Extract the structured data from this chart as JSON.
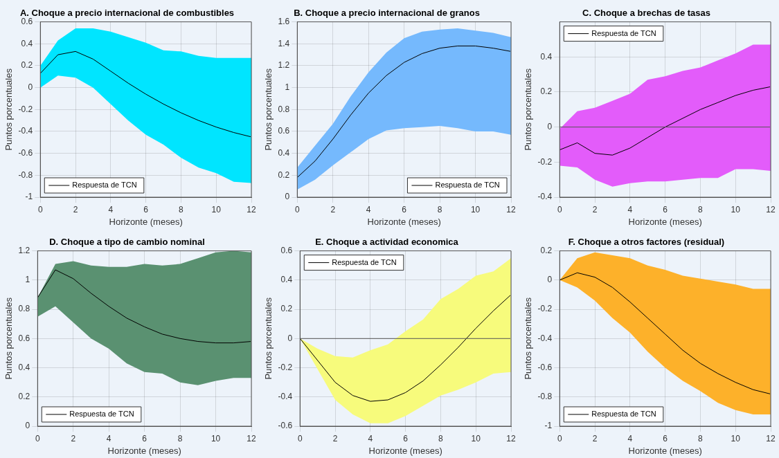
{
  "chart_data": [
    {
      "type": "line",
      "title": "A. Choque a precio internacional de combustibles",
      "xlabel": "Horizonte (meses)",
      "ylabel": "Puntos porcentuales",
      "x": [
        0,
        1,
        2,
        3,
        4,
        5,
        6,
        7,
        8,
        9,
        10,
        11,
        12
      ],
      "xlim": [
        0,
        12
      ],
      "xticks": [
        0,
        2,
        4,
        6,
        8,
        10,
        12
      ],
      "ylim": [
        -1,
        0.6
      ],
      "yticks": [
        -1,
        -0.8,
        -0.6,
        -0.4,
        -0.2,
        0,
        0.2,
        0.4,
        0.6
      ],
      "grid": true,
      "legend": "bottom left",
      "series": [
        {
          "name": "Respuesta de TCN",
          "color": "#000000",
          "colors": [
            "#00e5ff",
            "#00e5ff",
            "#00e5ff",
            "#00e5ff",
            "#00e5ff",
            "#00e5ff",
            "#00e5ff",
            "#00e5ff",
            "#00e5ff",
            "#00e5ff",
            "#00e5ff",
            "#00e5ff",
            "#00e5ff"
          ],
          "values": [
            0.13,
            0.3,
            0.33,
            0.26,
            0.15,
            0.04,
            -0.06,
            -0.15,
            -0.23,
            -0.3,
            -0.36,
            -0.41,
            -0.45
          ],
          "upper": [
            0.2,
            0.43,
            0.54,
            0.54,
            0.51,
            0.46,
            0.41,
            0.34,
            0.33,
            0.29,
            0.27,
            0.27,
            0.27
          ],
          "lower": [
            0.0,
            0.11,
            0.09,
            0.0,
            -0.15,
            -0.3,
            -0.43,
            -0.52,
            -0.64,
            -0.73,
            -0.78,
            -0.86,
            -0.87
          ]
        }
      ]
    },
    {
      "type": "line",
      "title": "B. Choque a precio internacional de granos",
      "xlabel": "Horizonte (meses)",
      "ylabel": "Puntos porcentuales",
      "x": [
        0,
        1,
        2,
        3,
        4,
        5,
        6,
        7,
        8,
        9,
        10,
        11,
        12
      ],
      "xlim": [
        0,
        12
      ],
      "xticks": [
        0,
        2,
        4,
        6,
        8,
        10,
        12
      ],
      "ylim": [
        0,
        1.6
      ],
      "yticks": [
        0,
        0.2,
        0.4,
        0.6,
        0.8,
        1,
        1.2,
        1.4,
        1.6
      ],
      "grid": true,
      "legend": "bottom right",
      "series": [
        {
          "name": "Respuesta de TCN",
          "color": "#000000",
          "colors": [
            "#75b9fd",
            "#75b9fd",
            "#75b9fd",
            "#75b9fd",
            "#75b9fd",
            "#75b9fd",
            "#75b9fd",
            "#75b9fd",
            "#75b9fd",
            "#75b9fd",
            "#75b9fd",
            "#75b9fd",
            "#75b9fd"
          ],
          "values": [
            0.18,
            0.33,
            0.53,
            0.75,
            0.95,
            1.11,
            1.23,
            1.31,
            1.36,
            1.38,
            1.38,
            1.36,
            1.33
          ],
          "upper": [
            0.27,
            0.47,
            0.67,
            0.92,
            1.14,
            1.32,
            1.45,
            1.51,
            1.53,
            1.54,
            1.52,
            1.5,
            1.46
          ],
          "lower": [
            0.07,
            0.16,
            0.29,
            0.41,
            0.53,
            0.61,
            0.63,
            0.64,
            0.65,
            0.63,
            0.6,
            0.6,
            0.57
          ]
        }
      ]
    },
    {
      "type": "line",
      "title": "C. Choque a brechas de tasas",
      "xlabel": "Horizonte (meses)",
      "ylabel": "Puntos porcentuales",
      "x": [
        0,
        1,
        2,
        3,
        4,
        5,
        6,
        7,
        8,
        9,
        10,
        11,
        12
      ],
      "xlim": [
        0,
        12
      ],
      "xticks": [
        0,
        2,
        4,
        6,
        8,
        10,
        12
      ],
      "ylim": [
        -0.4,
        0.6
      ],
      "yticks": [
        -0.4,
        -0.2,
        0,
        0.2,
        0.4
      ],
      "grid": true,
      "legend": "top left",
      "ref_lines": [
        {
          "axis": "y",
          "value": 0,
          "color": "#555555"
        }
      ],
      "series": [
        {
          "name": "Respuesta de TCN",
          "color": "#000000",
          "colors": [
            "#e35cfa",
            "#e35cfa",
            "#e35cfa",
            "#e35cfa",
            "#e35cfa",
            "#e35cfa",
            "#e35cfa",
            "#e35cfa",
            "#e35cfa",
            "#e35cfa",
            "#e35cfa",
            "#e35cfa",
            "#e35cfa"
          ],
          "values": [
            -0.13,
            -0.09,
            -0.15,
            -0.16,
            -0.12,
            -0.06,
            0.0,
            0.05,
            0.1,
            0.14,
            0.18,
            0.21,
            0.23
          ],
          "upper": [
            -0.01,
            0.09,
            0.11,
            0.15,
            0.19,
            0.27,
            0.29,
            0.32,
            0.34,
            0.38,
            0.42,
            0.47,
            0.47
          ],
          "lower": [
            -0.22,
            -0.23,
            -0.3,
            -0.34,
            -0.32,
            -0.31,
            -0.31,
            -0.3,
            -0.29,
            -0.29,
            -0.24,
            -0.24,
            -0.25
          ]
        }
      ]
    },
    {
      "type": "line",
      "title": "D. Choque a tipo de cambio nominal",
      "xlabel": "Horizonte (meses)",
      "ylabel": "Puntos porcentuales",
      "x": [
        0,
        1,
        2,
        3,
        4,
        5,
        6,
        7,
        8,
        9,
        10,
        11,
        12
      ],
      "xlim": [
        0,
        12
      ],
      "xticks": [
        0,
        2,
        4,
        6,
        8,
        10,
        12
      ],
      "ylim": [
        0,
        1.2
      ],
      "yticks": [
        0,
        0.2,
        0.4,
        0.6,
        0.8,
        1,
        1.2
      ],
      "grid": true,
      "legend": "bottom left",
      "series": [
        {
          "name": "Respuesta de TCN",
          "color": "#000000",
          "colors": [
            "#5a9171",
            "#5a9171",
            "#5a9171",
            "#5a9171",
            "#5a9171",
            "#5a9171",
            "#5a9171",
            "#5a9171",
            "#5a9171",
            "#5a9171",
            "#5a9171",
            "#5a9171",
            "#5a9171"
          ],
          "values": [
            0.88,
            1.07,
            1.01,
            0.91,
            0.82,
            0.74,
            0.68,
            0.63,
            0.6,
            0.58,
            0.57,
            0.57,
            0.58
          ],
          "upper": [
            0.88,
            1.11,
            1.13,
            1.1,
            1.09,
            1.09,
            1.11,
            1.1,
            1.11,
            1.15,
            1.19,
            1.2,
            1.19
          ],
          "lower": [
            0.75,
            0.82,
            0.71,
            0.6,
            0.53,
            0.43,
            0.37,
            0.36,
            0.3,
            0.28,
            0.31,
            0.33,
            0.33
          ]
        }
      ]
    },
    {
      "type": "line",
      "title": "E. Choque a actividad economica",
      "xlabel": "Horizonte (meses)",
      "ylabel": "Puntos porcentuales",
      "x": [
        0,
        1,
        2,
        3,
        4,
        5,
        6,
        7,
        8,
        9,
        10,
        11,
        12
      ],
      "xlim": [
        0,
        12
      ],
      "xticks": [
        0,
        2,
        4,
        6,
        8,
        10,
        12
      ],
      "ylim": [
        -0.6,
        0.6
      ],
      "yticks": [
        -0.6,
        -0.4,
        -0.2,
        0,
        0.2,
        0.4,
        0.6
      ],
      "grid": true,
      "legend": "top left",
      "ref_lines": [
        {
          "axis": "y",
          "value": 0,
          "color": "#555555"
        }
      ],
      "series": [
        {
          "name": "Respuesta de TCN",
          "color": "#000000",
          "colors": [
            "#f7fb7c",
            "#f7fb7c",
            "#f7fb7c",
            "#f7fb7c",
            "#f7fb7c",
            "#f7fb7c",
            "#f7fb7c",
            "#f7fb7c",
            "#f7fb7c",
            "#f7fb7c",
            "#f7fb7c",
            "#f7fb7c",
            "#f7fb7c"
          ],
          "values": [
            0,
            -0.15,
            -0.3,
            -0.39,
            -0.43,
            -0.42,
            -0.37,
            -0.29,
            -0.18,
            -0.06,
            0.07,
            0.19,
            0.3
          ],
          "upper": [
            0,
            -0.07,
            -0.12,
            -0.13,
            -0.08,
            -0.04,
            0.05,
            0.13,
            0.27,
            0.34,
            0.43,
            0.46,
            0.55
          ],
          "lower": [
            0,
            -0.21,
            -0.42,
            -0.52,
            -0.58,
            -0.58,
            -0.53,
            -0.46,
            -0.39,
            -0.35,
            -0.3,
            -0.24,
            -0.23
          ]
        }
      ]
    },
    {
      "type": "line",
      "title": "F. Choque a otros factores (residual)",
      "xlabel": "Horizonte (meses)",
      "ylabel": "Puntos porcentuales",
      "x": [
        0,
        1,
        2,
        3,
        4,
        5,
        6,
        7,
        8,
        9,
        10,
        11,
        12
      ],
      "xlim": [
        0,
        12
      ],
      "xticks": [
        0,
        2,
        4,
        6,
        8,
        10,
        12
      ],
      "ylim": [
        -1,
        0.2
      ],
      "yticks": [
        -1,
        -0.8,
        -0.6,
        -0.4,
        -0.2,
        0,
        0.2
      ],
      "grid": true,
      "legend": "bottom left",
      "series": [
        {
          "name": "Respuesta de TCN",
          "color": "#000000",
          "colors": [
            "#fdb12a",
            "#fdb12a",
            "#fdb12a",
            "#fdb12a",
            "#fdb12a",
            "#fdb12a",
            "#fdb12a",
            "#fdb12a",
            "#fdb12a",
            "#fdb12a",
            "#fdb12a",
            "#fdb12a",
            "#fdb12a"
          ],
          "values": [
            0,
            0.05,
            0.02,
            -0.05,
            -0.15,
            -0.26,
            -0.37,
            -0.48,
            -0.57,
            -0.64,
            -0.7,
            -0.75,
            -0.78
          ],
          "upper": [
            0,
            0.15,
            0.19,
            0.17,
            0.15,
            0.1,
            0.07,
            0.03,
            0.01,
            -0.01,
            -0.03,
            -0.06,
            -0.06
          ],
          "lower": [
            0,
            -0.05,
            -0.14,
            -0.26,
            -0.36,
            -0.49,
            -0.6,
            -0.69,
            -0.76,
            -0.84,
            -0.89,
            -0.92,
            -0.92
          ]
        }
      ]
    }
  ]
}
